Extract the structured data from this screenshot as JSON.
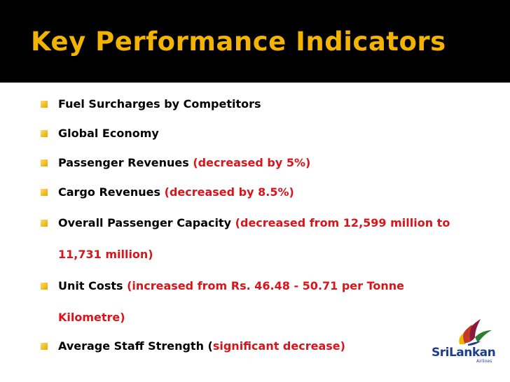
{
  "slide": {
    "title": "Key Performance Indicators"
  },
  "bullets": [
    {
      "text": "Fuel Surcharges by Competitors",
      "note": ""
    },
    {
      "text": "Global Economy",
      "note": ""
    },
    {
      "text": "Passenger Revenues ",
      "note": "(decreased by 5%)"
    },
    {
      "text": "Cargo Revenues ",
      "note": "(decreased by 8.5%)"
    },
    {
      "text": "Overall Passenger Capacity ",
      "note": "(decreased from 12,599 million to",
      "note_line2": "11,731 million)"
    },
    {
      "text": "Unit Costs ",
      "note": "(increased from Rs. 46.48  - 50.71 per Tonne",
      "note_line2": "Kilometre)"
    },
    {
      "text": "Average Staff Strength (",
      "note": "significant decrease)"
    }
  ],
  "logo": {
    "name": "SriLankan",
    "sub": "Airlines",
    "colors": {
      "blue": "#1d3f8c",
      "maroon": "#8b1a3a",
      "gold": "#f2b400"
    }
  },
  "colors": {
    "title": "#f2b400",
    "title_bar": "#000000",
    "highlight": "#d9141b",
    "bullet_marker": "#e7a800"
  }
}
